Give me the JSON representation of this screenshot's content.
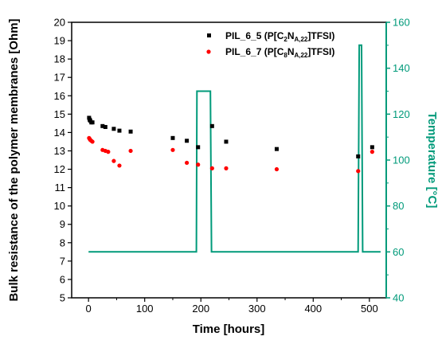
{
  "chart_data": {
    "type": "scatter",
    "xlabel": "Time [hours]",
    "ylabel": "Bulk resistance of the polymer membranes [Ohm]",
    "y2label": "Temperature [°C]",
    "xlim": [
      -30,
      530
    ],
    "ylim": [
      5,
      20
    ],
    "y2lim": [
      40,
      160
    ],
    "xticks": [
      0,
      100,
      200,
      300,
      400,
      500
    ],
    "yticks": [
      5,
      6,
      7,
      8,
      9,
      10,
      11,
      12,
      13,
      14,
      15,
      16,
      17,
      18,
      19,
      20
    ],
    "y2ticks": [
      40,
      60,
      80,
      100,
      120,
      140,
      160
    ],
    "legend": {
      "placement": "top-right",
      "entries": [
        {
          "prefix": "PIL_6_5 (P[C",
          "sub1": "2",
          "mid": "N",
          "sub2": "A,22",
          "suffix": "]TFSI)"
        },
        {
          "prefix": "PIL_6_7 (P[C",
          "sub1": "8",
          "mid": "N",
          "sub2": "A,22",
          "suffix": "]TFSI)"
        }
      ]
    },
    "series": [
      {
        "name": "PIL_6_5 (P[C2NA,22]TFSI)",
        "color": "#000000",
        "marker": "square",
        "axis": "left",
        "points": [
          [
            1,
            14.8
          ],
          [
            2,
            14.7
          ],
          [
            3,
            14.65
          ],
          [
            5,
            14.55
          ],
          [
            7,
            14.55
          ],
          [
            25,
            14.35
          ],
          [
            30,
            14.3
          ],
          [
            45,
            14.2
          ],
          [
            55,
            14.1
          ],
          [
            75,
            14.05
          ],
          [
            150,
            13.7
          ],
          [
            175,
            13.55
          ],
          [
            195,
            13.2
          ],
          [
            220,
            14.35
          ],
          [
            245,
            13.5
          ],
          [
            335,
            13.1
          ],
          [
            480,
            12.7
          ],
          [
            505,
            13.2
          ]
        ]
      },
      {
        "name": "PIL_6_7 (P[C8NA,22]TFSI)",
        "color": "#ff0000",
        "marker": "circle",
        "axis": "left",
        "points": [
          [
            1,
            13.7
          ],
          [
            2,
            13.65
          ],
          [
            3,
            13.6
          ],
          [
            5,
            13.55
          ],
          [
            7,
            13.5
          ],
          [
            25,
            13.05
          ],
          [
            30,
            13.0
          ],
          [
            35,
            12.95
          ],
          [
            45,
            12.45
          ],
          [
            55,
            12.2
          ],
          [
            75,
            13.0
          ],
          [
            150,
            13.05
          ],
          [
            175,
            12.35
          ],
          [
            195,
            12.25
          ],
          [
            220,
            12.05
          ],
          [
            245,
            12.05
          ],
          [
            335,
            12.0
          ],
          [
            480,
            11.9
          ],
          [
            505,
            12.95
          ]
        ]
      },
      {
        "name": "Temperature",
        "color": "#009a7a",
        "type": "line",
        "axis": "right",
        "points": [
          [
            0,
            60
          ],
          [
            192,
            60
          ],
          [
            193,
            130
          ],
          [
            217,
            130
          ],
          [
            219,
            60
          ],
          [
            480,
            60
          ],
          [
            482,
            150
          ],
          [
            486,
            150
          ],
          [
            488,
            60
          ],
          [
            520,
            60
          ]
        ]
      }
    ],
    "colors": {
      "temperature_axis": "#009a7a",
      "axis": "#000000"
    }
  }
}
